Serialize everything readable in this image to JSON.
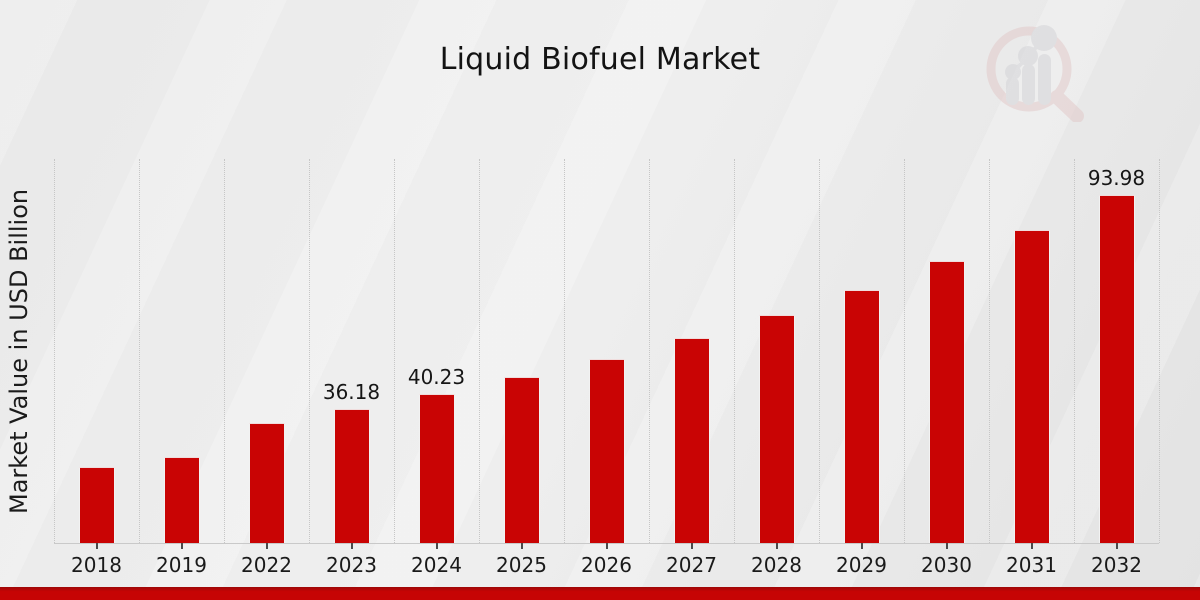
{
  "chart": {
    "title": "Liquid Biofuel Market",
    "ylabel": "Market Value in USD Billion"
  },
  "chart_data": {
    "type": "bar",
    "title": "Liquid Biofuel Market",
    "xlabel": "",
    "ylabel": "Market Value in USD Billion",
    "categories": [
      "2018",
      "2019",
      "2022",
      "2023",
      "2024",
      "2025",
      "2026",
      "2027",
      "2028",
      "2029",
      "2030",
      "2031",
      "2032"
    ],
    "values": [
      20.5,
      23.3,
      32.4,
      36.18,
      40.23,
      44.74,
      49.75,
      55.32,
      61.52,
      68.41,
      76.07,
      84.6,
      93.98
    ],
    "value_labels": {
      "2023": "36.18",
      "2024": "40.23",
      "2032": "93.98"
    },
    "ylim": [
      0,
      103.7
    ],
    "grid": "vertical-dotted-between-categories",
    "legend": "none",
    "bar_color": "#c90404",
    "bar_edge_color": "#f2f2f2"
  },
  "colors": {
    "accent_red": "#c60404",
    "background_gray": "#e9e9e9",
    "text_dark": "#161616",
    "gridline_gray": "#c6c6c6"
  },
  "footer": {
    "style": "red-accent-stripe"
  },
  "branding": {
    "logo_icon": "magnifier-bar-chart-watermark"
  }
}
